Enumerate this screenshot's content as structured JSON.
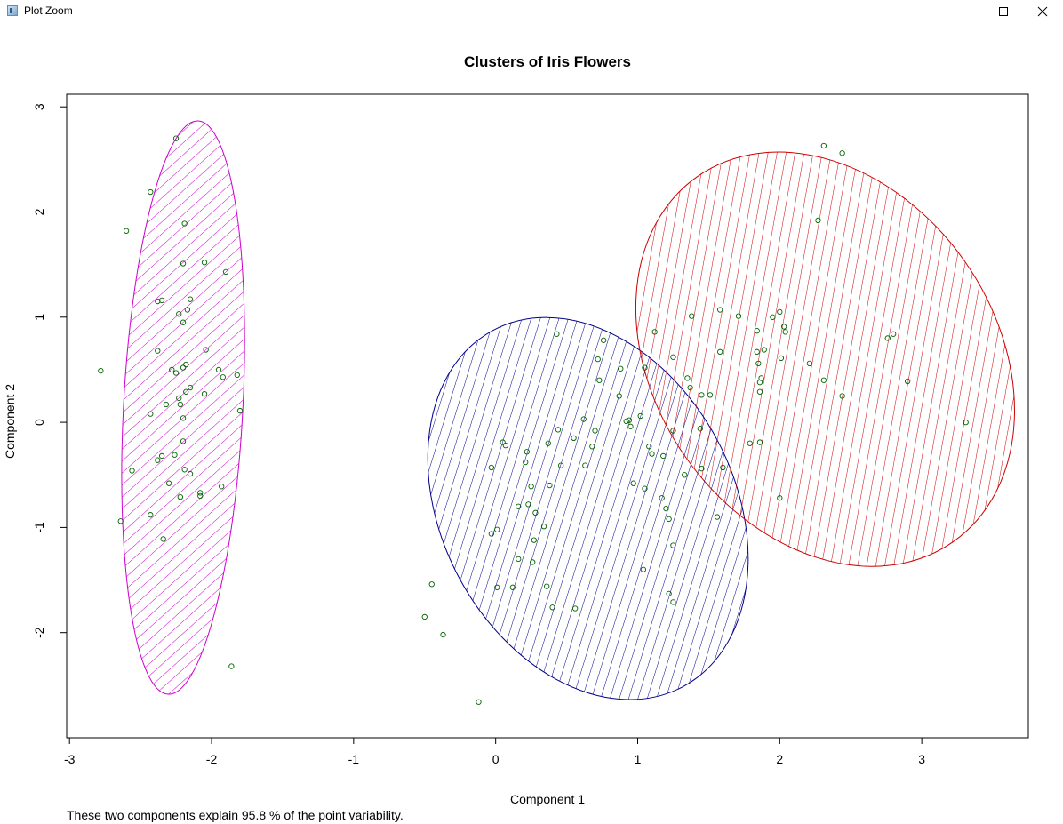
{
  "window": {
    "title": "Plot Zoom",
    "controls": [
      "minimize",
      "maximize",
      "close"
    ]
  },
  "chart_data": {
    "type": "scatter",
    "title": "Clusters of Iris Flowers",
    "xlabel": "Component 1",
    "ylabel": "Component 2",
    "footnote": "These two components explain 95.8 % of the point variability.",
    "xlim": [
      -3.02,
      3.75
    ],
    "ylim": [
      -3.0,
      3.12
    ],
    "x_ticks": [
      -3,
      -2,
      -1,
      0,
      1,
      2,
      3
    ],
    "x_tick_labels": [
      "-3",
      "-2",
      "-1",
      "0",
      "1",
      "2",
      "3"
    ],
    "y_ticks": [
      -2,
      -1,
      0,
      1,
      2,
      3
    ],
    "y_tick_labels": [
      "-2",
      "-1",
      "0",
      "1",
      "2",
      "3"
    ],
    "grid": false,
    "point_style": "open circle",
    "point_color": "#006400",
    "clusters": [
      {
        "id": 1,
        "color": "#cc00cc",
        "ellipse": {
          "center": [
            -2.2,
            0.14
          ],
          "rx": 0.42,
          "ry": 2.73,
          "angle_deg": -3
        },
        "hatch_angle_deg": 45,
        "points": [
          [
            -2.25,
            2.7
          ],
          [
            -2.43,
            2.19
          ],
          [
            -2.6,
            1.82
          ],
          [
            -2.19,
            1.89
          ],
          [
            -2.2,
            1.51
          ],
          [
            -2.05,
            1.52
          ],
          [
            -1.9,
            1.43
          ],
          [
            -2.15,
            1.17
          ],
          [
            -2.38,
            1.15
          ],
          [
            -2.35,
            1.16
          ],
          [
            -2.23,
            1.03
          ],
          [
            -2.17,
            1.07
          ],
          [
            -2.2,
            0.95
          ],
          [
            -2.38,
            0.68
          ],
          [
            -2.04,
            0.69
          ],
          [
            -2.78,
            0.49
          ],
          [
            -2.18,
            0.55
          ],
          [
            -2.28,
            0.5
          ],
          [
            -2.2,
            0.52
          ],
          [
            -1.95,
            0.5
          ],
          [
            -2.25,
            0.47
          ],
          [
            -1.82,
            0.45
          ],
          [
            -1.92,
            0.43
          ],
          [
            -2.15,
            0.33
          ],
          [
            -2.18,
            0.29
          ],
          [
            -2.05,
            0.27
          ],
          [
            -2.23,
            0.23
          ],
          [
            -2.32,
            0.17
          ],
          [
            -2.22,
            0.17
          ],
          [
            -1.8,
            0.11
          ],
          [
            -2.43,
            0.08
          ],
          [
            -2.2,
            0.04
          ],
          [
            -2.2,
            -0.18
          ],
          [
            -2.26,
            -0.31
          ],
          [
            -2.35,
            -0.32
          ],
          [
            -2.38,
            -0.36
          ],
          [
            -2.56,
            -0.46
          ],
          [
            -2.19,
            -0.45
          ],
          [
            -2.15,
            -0.49
          ],
          [
            -2.3,
            -0.58
          ],
          [
            -1.93,
            -0.61
          ],
          [
            -2.08,
            -0.67
          ],
          [
            -2.08,
            -0.7
          ],
          [
            -2.22,
            -0.71
          ],
          [
            -2.43,
            -0.88
          ],
          [
            -2.64,
            -0.94
          ],
          [
            -2.34,
            -1.11
          ],
          [
            -1.86,
            -2.32
          ]
        ]
      },
      {
        "id": 2,
        "color": "#00008b",
        "ellipse": {
          "center": [
            0.65,
            -0.82
          ],
          "rx": 1.03,
          "ry": 1.92,
          "angle_deg": 28
        },
        "hatch_angle_deg": 45,
        "points": [
          [
            0.43,
            0.84
          ],
          [
            1.12,
            0.86
          ],
          [
            0.76,
            0.78
          ],
          [
            0.72,
            0.6
          ],
          [
            0.88,
            0.51
          ],
          [
            1.05,
            0.52
          ],
          [
            1.25,
            0.62
          ],
          [
            0.73,
            0.4
          ],
          [
            1.35,
            0.42
          ],
          [
            1.37,
            0.33
          ],
          [
            0.87,
            0.25
          ],
          [
            1.51,
            0.26
          ],
          [
            0.62,
            0.03
          ],
          [
            0.94,
            0.02
          ],
          [
            0.92,
            0.01
          ],
          [
            1.02,
            0.06
          ],
          [
            0.95,
            -0.04
          ],
          [
            0.7,
            -0.08
          ],
          [
            0.44,
            -0.07
          ],
          [
            0.37,
            -0.2
          ],
          [
            0.55,
            -0.15
          ],
          [
            0.68,
            -0.23
          ],
          [
            0.07,
            -0.22
          ],
          [
            0.05,
            -0.19
          ],
          [
            0.22,
            -0.28
          ],
          [
            0.21,
            -0.38
          ],
          [
            0.46,
            -0.41
          ],
          [
            0.63,
            -0.41
          ],
          [
            -0.03,
            -0.43
          ],
          [
            1.08,
            -0.23
          ],
          [
            1.1,
            -0.3
          ],
          [
            1.18,
            -0.32
          ],
          [
            1.6,
            -0.43
          ],
          [
            1.33,
            -0.5
          ],
          [
            1.45,
            -0.44
          ],
          [
            0.38,
            -0.6
          ],
          [
            0.25,
            -0.61
          ],
          [
            0.97,
            -0.58
          ],
          [
            1.05,
            -0.63
          ],
          [
            1.17,
            -0.72
          ],
          [
            0.16,
            -0.8
          ],
          [
            0.23,
            -0.78
          ],
          [
            0.28,
            -0.86
          ],
          [
            1.2,
            -0.82
          ],
          [
            1.22,
            -0.92
          ],
          [
            0.34,
            -0.99
          ],
          [
            0.27,
            -1.12
          ],
          [
            1.56,
            -0.9
          ],
          [
            -0.03,
            -1.06
          ],
          [
            0.01,
            -1.02
          ],
          [
            1.25,
            -1.17
          ],
          [
            0.16,
            -1.3
          ],
          [
            0.26,
            -1.33
          ],
          [
            1.04,
            -1.4
          ],
          [
            -0.45,
            -1.54
          ],
          [
            0.01,
            -1.57
          ],
          [
            0.12,
            -1.57
          ],
          [
            0.36,
            -1.56
          ],
          [
            1.22,
            -1.63
          ],
          [
            1.25,
            -1.71
          ],
          [
            0.4,
            -1.76
          ],
          [
            0.56,
            -1.77
          ],
          [
            -0.5,
            -1.85
          ],
          [
            -0.37,
            -2.02
          ],
          [
            -0.12,
            -2.66
          ],
          [
            1.45,
            0.26
          ],
          [
            1.25,
            -0.08
          ],
          [
            1.44,
            -0.06
          ]
        ]
      },
      {
        "id": 3,
        "color": "#cc0000",
        "ellipse": {
          "center": [
            2.32,
            0.6
          ],
          "rx": 1.2,
          "ry": 2.12,
          "angle_deg": 35
        },
        "hatch_angle_deg": 45,
        "points": [
          [
            2.31,
            2.63
          ],
          [
            2.44,
            2.56
          ],
          [
            2.27,
            1.92
          ],
          [
            1.58,
            1.07
          ],
          [
            1.71,
            1.01
          ],
          [
            1.38,
            1.01
          ],
          [
            1.95,
            1.0
          ],
          [
            2.0,
            1.05
          ],
          [
            2.03,
            0.91
          ],
          [
            2.04,
            0.86
          ],
          [
            1.84,
            0.87
          ],
          [
            2.76,
            0.8
          ],
          [
            2.8,
            0.84
          ],
          [
            1.58,
            0.67
          ],
          [
            1.89,
            0.69
          ],
          [
            1.84,
            0.67
          ],
          [
            2.01,
            0.61
          ],
          [
            1.85,
            0.56
          ],
          [
            2.21,
            0.56
          ],
          [
            2.31,
            0.4
          ],
          [
            2.9,
            0.39
          ],
          [
            1.87,
            0.42
          ],
          [
            1.86,
            0.38
          ],
          [
            1.86,
            0.29
          ],
          [
            2.44,
            0.25
          ],
          [
            3.31,
            0.0
          ],
          [
            1.79,
            -0.2
          ],
          [
            1.86,
            -0.19
          ],
          [
            2.0,
            -0.72
          ]
        ]
      }
    ]
  }
}
